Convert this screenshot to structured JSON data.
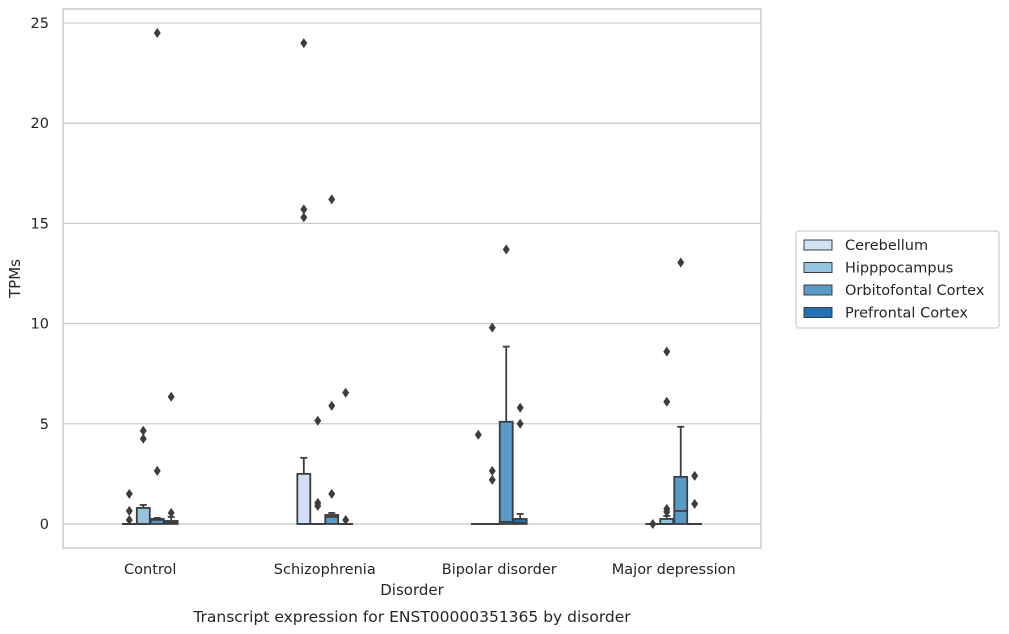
{
  "chart_data": {
    "type": "box",
    "caption": "Transcript expression for ENST00000351365 by disorder",
    "xlabel": "Disorder",
    "ylabel": "TPMs",
    "ylim": [
      -1.2,
      25.7
    ],
    "yticks": [
      0,
      5,
      10,
      15,
      20,
      25
    ],
    "grid": true,
    "legend_position": "right",
    "categories": [
      "Control",
      "Schizophrenia",
      "Bipolar disorder",
      "Major depression"
    ],
    "series": [
      {
        "name": "Cerebellum",
        "color": "#d0e1f2",
        "boxes": [
          {
            "q1": 0,
            "median": 0,
            "q3": 0,
            "whislo": 0,
            "whishi": 0,
            "fliers": [
              1.5,
              0.65,
              0.2
            ]
          },
          {
            "q1": 0,
            "median": 0,
            "q3": 2.5,
            "whislo": 0,
            "whishi": 3.3,
            "fliers": [
              15.7,
              15.3,
              24.0
            ]
          },
          {
            "q1": 0,
            "median": 0,
            "q3": 0,
            "whislo": 0,
            "whishi": 0,
            "fliers": [
              4.45
            ]
          },
          {
            "q1": 0,
            "median": 0,
            "q3": 0,
            "whislo": 0,
            "whishi": 0,
            "fliers": [
              0
            ]
          }
        ]
      },
      {
        "name": "Hipppocampus",
        "color": "#94c4df",
        "boxes": [
          {
            "q1": 0,
            "median": 0,
            "q3": 0.8,
            "whislo": 0,
            "whishi": 0.95,
            "fliers": [
              4.65,
              4.25
            ]
          },
          {
            "q1": 0,
            "median": 0,
            "q3": 0,
            "whislo": 0,
            "whishi": 0,
            "fliers": [
              5.15,
              1.05,
              0.9
            ]
          },
          {
            "q1": 0,
            "median": 0,
            "q3": 0,
            "whislo": 0,
            "whishi": 0,
            "fliers": [
              2.65,
              2.2,
              9.8
            ]
          },
          {
            "q1": 0,
            "median": 0,
            "q3": 0.25,
            "whislo": 0,
            "whishi": 0.4,
            "fliers": [
              8.6,
              6.1,
              0.75,
              0.6
            ]
          }
        ]
      },
      {
        "name": "Orbitofontal Cortex",
        "color": "#5a9ac8",
        "boxes": [
          {
            "q1": 0,
            "median": 0.2,
            "q3": 0.25,
            "whislo": 0,
            "whishi": 0.3,
            "fliers": [
              24.5,
              2.65
            ]
          },
          {
            "q1": 0,
            "median": 0.35,
            "q3": 0.45,
            "whislo": 0,
            "whishi": 0.55,
            "fliers": [
              16.2,
              5.9,
              1.5
            ]
          },
          {
            "q1": 0,
            "median": 0.1,
            "q3": 5.1,
            "whislo": 0,
            "whishi": 8.85,
            "fliers": [
              13.7
            ]
          },
          {
            "q1": 0,
            "median": 0.65,
            "q3": 2.35,
            "whislo": 0,
            "whishi": 4.85,
            "fliers": [
              13.05
            ]
          }
        ]
      },
      {
        "name": "Prefrontal Cortex",
        "color": "#2171b5",
        "boxes": [
          {
            "q1": 0,
            "median": 0.05,
            "q3": 0.15,
            "whislo": 0,
            "whishi": 0.35,
            "fliers": [
              6.35,
              0.55
            ]
          },
          {
            "q1": 0,
            "median": 0,
            "q3": 0,
            "whislo": 0,
            "whishi": 0,
            "fliers": [
              6.55,
              0.2
            ]
          },
          {
            "q1": 0,
            "median": 0.05,
            "q3": 0.25,
            "whislo": 0,
            "whishi": 0.5,
            "fliers": [
              5.8,
              5.0
            ]
          },
          {
            "q1": 0,
            "median": 0,
            "q3": 0,
            "whislo": 0,
            "whishi": 0,
            "fliers": [
              2.4,
              1.0
            ]
          }
        ]
      }
    ]
  }
}
